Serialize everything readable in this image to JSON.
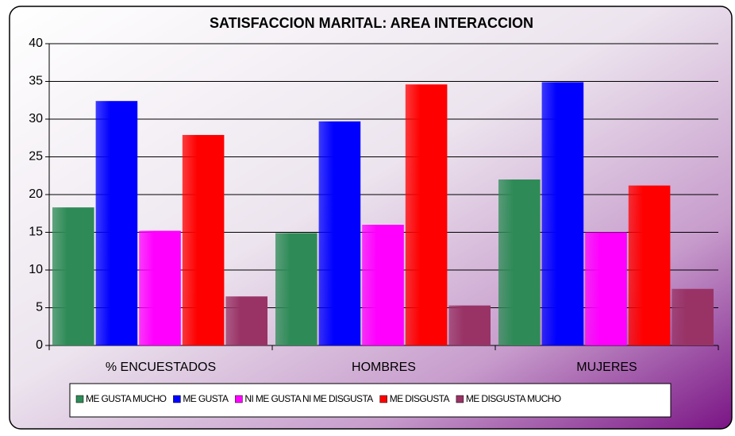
{
  "chart_data": {
    "type": "bar",
    "title": "SATISFACCION MARITAL: AREA INTERACCION",
    "categories": [
      "% ENCUESTADOS",
      "HOMBRES",
      "MUJERES"
    ],
    "series": [
      {
        "name": "ME GUSTA MUCHO",
        "color": "#2e8b57",
        "values": [
          18.3,
          14.9,
          22.0
        ]
      },
      {
        "name": "ME GUSTA",
        "color": "#0000ff",
        "values": [
          32.4,
          29.7,
          34.9
        ]
      },
      {
        "name": "NI ME GUSTA NI ME DISGUSTA",
        "color": "#ff00ff",
        "values": [
          15.2,
          16.0,
          15.0
        ]
      },
      {
        "name": "ME DISGUSTA",
        "color": "#ff0000",
        "values": [
          27.9,
          34.6,
          21.2
        ]
      },
      {
        "name": "ME DISGUSTA MUCHO",
        "color": "#993366",
        "values": [
          6.5,
          5.3,
          7.5
        ]
      }
    ],
    "ylim": [
      0,
      40
    ],
    "yticks": [
      0,
      5,
      10,
      15,
      20,
      25,
      30,
      35,
      40
    ],
    "grid": true,
    "legend": "bottom"
  }
}
